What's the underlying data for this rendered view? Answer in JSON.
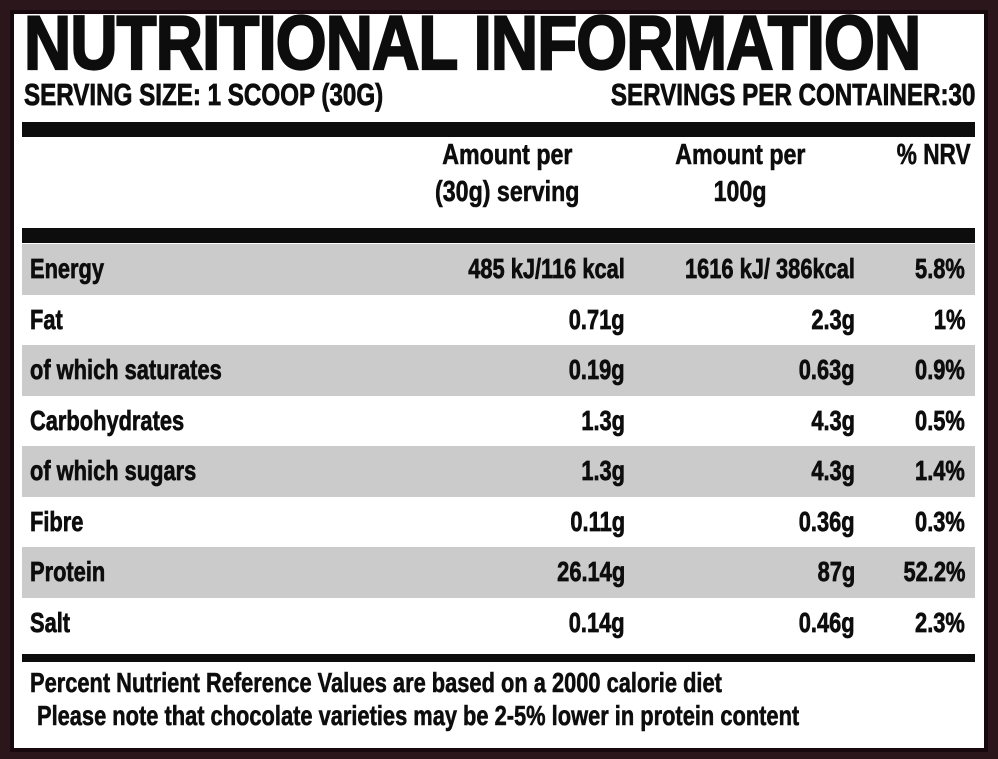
{
  "label": {
    "title": "NUTRITIONAL INFORMATION",
    "serving_size": "SERVING SIZE: 1 SCOOP (30G)",
    "servings_per_container": "SERVINGS PER CONTAINER:30",
    "columns": {
      "per_serving": [
        "Amount per",
        "(30g) serving"
      ],
      "per_100g": [
        "Amount per",
        "100g"
      ],
      "nrv": "% NRV"
    },
    "rows": [
      {
        "name": "Energy",
        "per_serving": "485 kJ/116 kcal",
        "per_100g": "1616 kJ/ 386kcal",
        "nrv": "5.8%"
      },
      {
        "name": "Fat",
        "per_serving": "0.71g",
        "per_100g": "2.3g",
        "nrv": "1%"
      },
      {
        "name": "of which saturates",
        "per_serving": "0.19g",
        "per_100g": "0.63g",
        "nrv": "0.9%"
      },
      {
        "name": "Carbohydrates",
        "per_serving": "1.3g",
        "per_100g": "4.3g",
        "nrv": "0.5%"
      },
      {
        "name": "of which sugars",
        "per_serving": "1.3g",
        "per_100g": "4.3g",
        "nrv": "1.4%"
      },
      {
        "name": "Fibre",
        "per_serving": "0.11g",
        "per_100g": "0.36g",
        "nrv": "0.3%"
      },
      {
        "name": "Protein",
        "per_serving": "26.14g",
        "per_100g": "87g",
        "nrv": "52.2%"
      },
      {
        "name": "Salt",
        "per_serving": "0.14g",
        "per_100g": "0.46g",
        "nrv": "2.3%"
      }
    ],
    "footnotes": [
      "Percent Nutrient Reference Values are based on a 2000 calorie diet",
      "Please note that chocolate varieties may be 2-5% lower in protein content"
    ]
  },
  "colors": {
    "border": "#2b161b",
    "bar": "#0d0d0d",
    "row_alt": "#cbcbcb",
    "text": "#0d0d0d",
    "background": "#ffffff"
  }
}
